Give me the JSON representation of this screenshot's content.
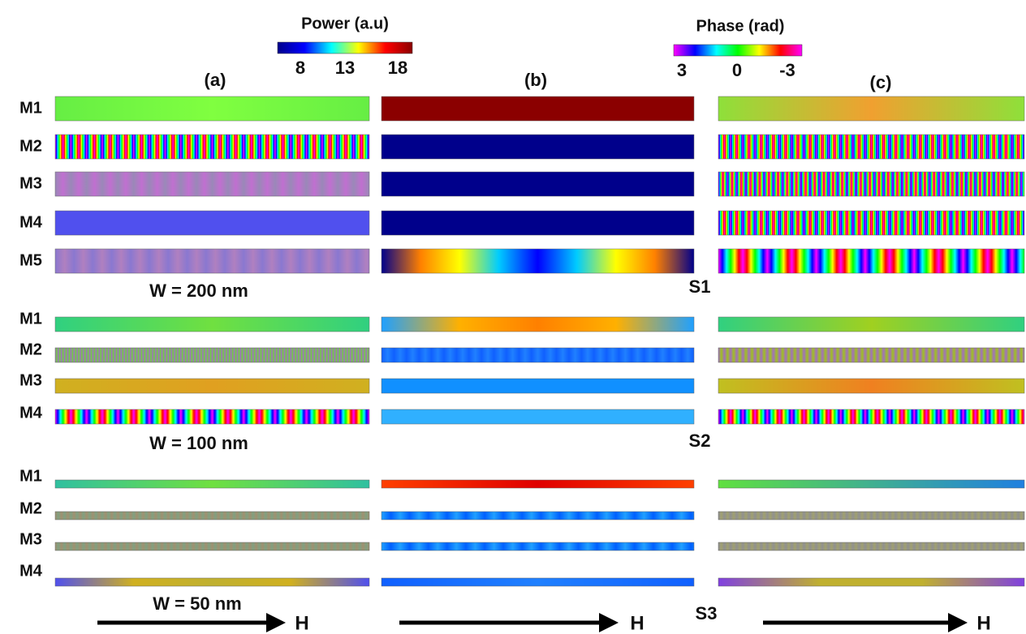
{
  "colorbars": [
    {
      "title": "Power (a.u)",
      "ticks": [
        "8",
        "13",
        "18"
      ]
    },
    {
      "title": "Phase (rad)",
      "ticks": [
        "3",
        "0",
        "-3"
      ]
    }
  ],
  "panels": [
    "(a)",
    "(b)",
    "(c)"
  ],
  "groups": [
    {
      "rows": [
        "M1",
        "M2",
        "M3",
        "M4",
        "M5"
      ],
      "width": "W = 200 nm",
      "label": "S1"
    },
    {
      "rows": [
        "M1",
        "M2",
        "M3",
        "M4"
      ],
      "width": "W = 100 nm",
      "label": "S2"
    },
    {
      "rows": [
        "M1",
        "M2",
        "M3",
        "M4"
      ],
      "width": "W = 50 nm",
      "label": "S3"
    }
  ],
  "arrows": [
    "H",
    "H",
    "H"
  ]
}
